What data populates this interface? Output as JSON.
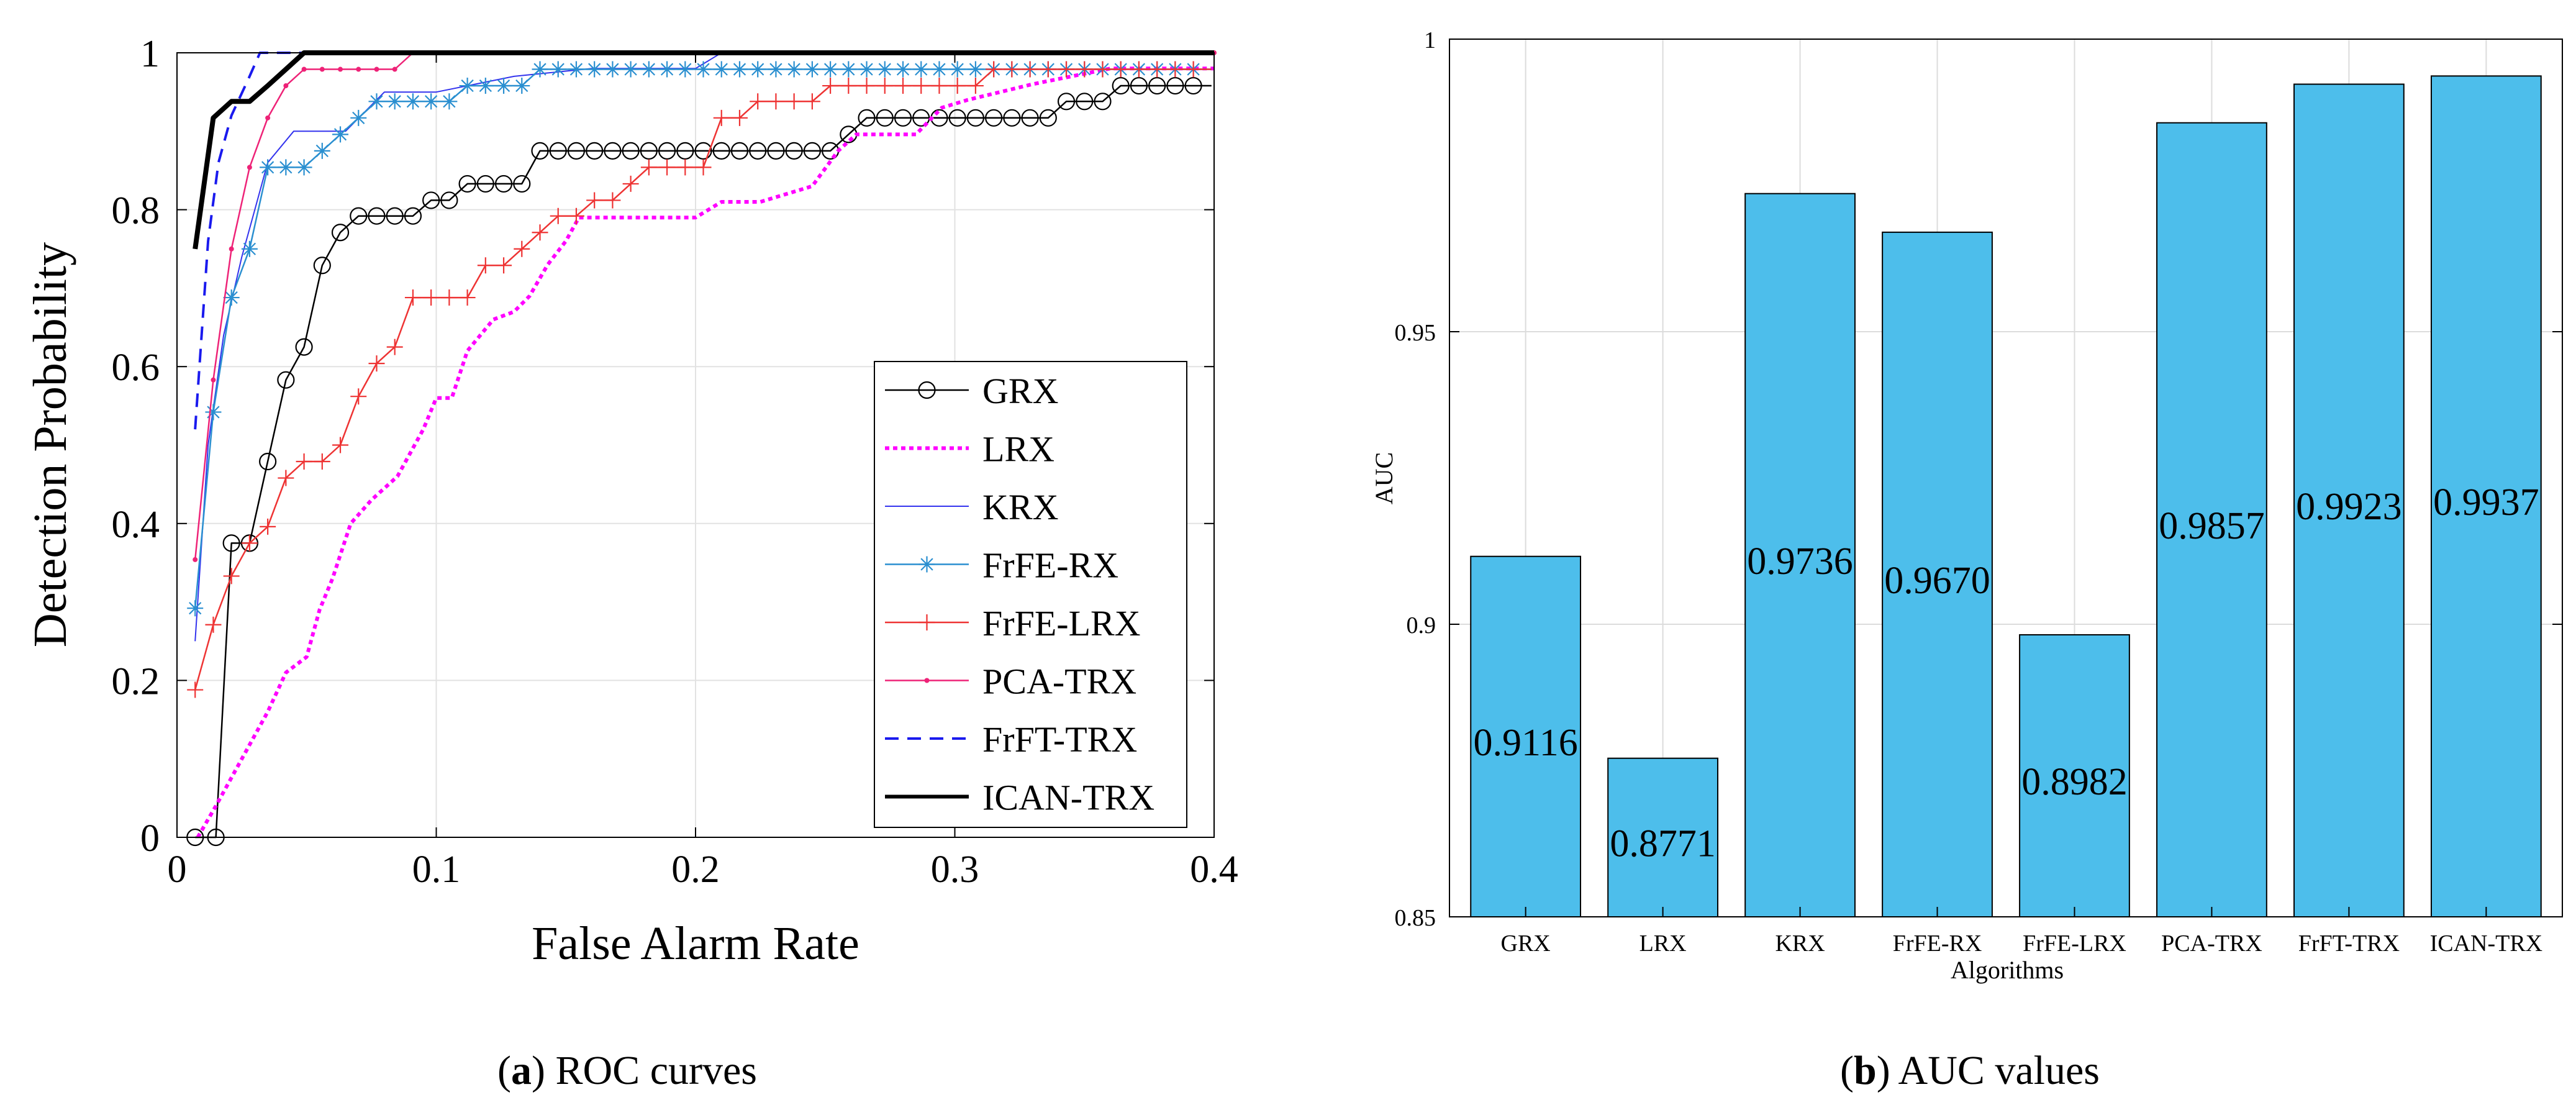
{
  "chart_data": [
    {
      "type": "line",
      "caption_prefix": "a",
      "caption_text": "ROC curves",
      "xlabel": "False Alarm Rate",
      "ylabel": "Detection Probability",
      "xlim": [
        0,
        0.4
      ],
      "ylim": [
        0,
        1
      ],
      "xticks": [
        "0",
        "0.1",
        "0.2",
        "0.3",
        "0.4"
      ],
      "yticks": [
        "0",
        "0.2",
        "0.4",
        "0.6",
        "0.8",
        "1"
      ],
      "grid": true,
      "legend_position": "bottom-right",
      "series": [
        {
          "name": "GRX",
          "color": "#000000",
          "style": "solid",
          "marker": "circle",
          "width": 2.5,
          "x": [
            0.007,
            0.015,
            0.021,
            0.028,
            0.035,
            0.042,
            0.049,
            0.056,
            0.063,
            0.07,
            0.077,
            0.084,
            0.091,
            0.098,
            0.105,
            0.112,
            0.119,
            0.126,
            0.133,
            0.14,
            0.147,
            0.154,
            0.161,
            0.168,
            0.175,
            0.182,
            0.189,
            0.196,
            0.203,
            0.21,
            0.217,
            0.224,
            0.231,
            0.238,
            0.245,
            0.252,
            0.259,
            0.266,
            0.273,
            0.28,
            0.287,
            0.294,
            0.301,
            0.308,
            0.315,
            0.322,
            0.329,
            0.336,
            0.343,
            0.35,
            0.357,
            0.364,
            0.371,
            0.378,
            0.385,
            0.392,
            0.399
          ],
          "y": [
            0,
            0,
            0.375,
            0.375,
            0.479,
            0.583,
            0.625,
            0.729,
            0.771,
            0.792,
            0.792,
            0.792,
            0.792,
            0.812,
            0.812,
            0.833,
            0.833,
            0.833,
            0.833,
            0.875,
            0.875,
            0.875,
            0.875,
            0.875,
            0.875,
            0.875,
            0.875,
            0.875,
            0.875,
            0.875,
            0.875,
            0.875,
            0.875,
            0.875,
            0.875,
            0.875,
            0.896,
            0.917,
            0.917,
            0.917,
            0.917,
            0.917,
            0.917,
            0.917,
            0.917,
            0.917,
            0.917,
            0.917,
            0.938,
            0.938,
            0.938,
            0.958,
            0.958,
            0.958,
            0.958,
            0.958,
            0.958
          ]
        },
        {
          "name": "LRX",
          "color": "#ff00ff",
          "style": "dotted",
          "marker": "none",
          "width": 6,
          "x": [
            0.008,
            0.015,
            0.025,
            0.035,
            0.042,
            0.05,
            0.055,
            0.06,
            0.067,
            0.075,
            0.085,
            0.095,
            0.1,
            0.106,
            0.112,
            0.122,
            0.13,
            0.136,
            0.143,
            0.15,
            0.155,
            0.17,
            0.2,
            0.21,
            0.225,
            0.245,
            0.255,
            0.262,
            0.285,
            0.295,
            0.305,
            0.33,
            0.36,
            0.4
          ],
          "y": [
            0,
            0.04,
            0.1,
            0.16,
            0.21,
            0.23,
            0.29,
            0.33,
            0.4,
            0.43,
            0.46,
            0.52,
            0.56,
            0.56,
            0.62,
            0.66,
            0.67,
            0.69,
            0.73,
            0.76,
            0.79,
            0.79,
            0.79,
            0.81,
            0.81,
            0.83,
            0.875,
            0.896,
            0.896,
            0.93,
            0.94,
            0.96,
            0.98,
            0.98
          ]
        },
        {
          "name": "KRX",
          "color": "#3333ee",
          "style": "solid",
          "marker": "none",
          "width": 2,
          "x": [
            0.007,
            0.012,
            0.018,
            0.025,
            0.03,
            0.035,
            0.045,
            0.05,
            0.065,
            0.08,
            0.1,
            0.13,
            0.16,
            0.2,
            0.21,
            0.3,
            0.4
          ],
          "y": [
            0.25,
            0.5,
            0.64,
            0.74,
            0.8,
            0.86,
            0.9,
            0.9,
            0.9,
            0.95,
            0.95,
            0.97,
            0.98,
            0.98,
            1,
            1,
            1
          ]
        },
        {
          "name": "FrFE-RX",
          "color": "#2a8fd0",
          "style": "solid",
          "marker": "star",
          "width": 2.5,
          "x": [
            0.007,
            0.014,
            0.021,
            0.028,
            0.035,
            0.042,
            0.049,
            0.056,
            0.063,
            0.07,
            0.077,
            0.084,
            0.091,
            0.098,
            0.105,
            0.112,
            0.119,
            0.126,
            0.133,
            0.14,
            0.147,
            0.154,
            0.161,
            0.168,
            0.175,
            0.182,
            0.189,
            0.196,
            0.203,
            0.21,
            0.217,
            0.224,
            0.231,
            0.238,
            0.245,
            0.252,
            0.259,
            0.266,
            0.273,
            0.28,
            0.287,
            0.294,
            0.301,
            0.308,
            0.315,
            0.322,
            0.329,
            0.336,
            0.343,
            0.35,
            0.357,
            0.364,
            0.371,
            0.378,
            0.385,
            0.392,
            0.399
          ],
          "y": [
            0.292,
            0.542,
            0.688,
            0.75,
            0.854,
            0.854,
            0.854,
            0.875,
            0.896,
            0.917,
            0.938,
            0.938,
            0.938,
            0.938,
            0.938,
            0.958,
            0.958,
            0.958,
            0.958,
            0.979,
            0.979,
            0.979,
            0.979,
            0.979,
            0.979,
            0.979,
            0.979,
            0.979,
            0.979,
            0.979,
            0.979,
            0.979,
            0.979,
            0.979,
            0.979,
            0.979,
            0.979,
            0.979,
            0.979,
            0.979,
            0.979,
            0.979,
            0.979,
            0.979,
            0.979,
            0.979,
            0.979,
            0.979,
            0.979,
            0.979,
            0.979,
            0.979,
            0.979,
            0.979,
            0.979,
            0.979,
            0.979
          ]
        },
        {
          "name": "FrFE-LRX",
          "color": "#ee3333",
          "style": "solid",
          "marker": "plus",
          "width": 2.5,
          "x": [
            0.007,
            0.014,
            0.021,
            0.028,
            0.035,
            0.042,
            0.049,
            0.056,
            0.063,
            0.07,
            0.077,
            0.084,
            0.091,
            0.098,
            0.105,
            0.112,
            0.119,
            0.126,
            0.133,
            0.14,
            0.147,
            0.154,
            0.161,
            0.168,
            0.175,
            0.182,
            0.189,
            0.196,
            0.203,
            0.21,
            0.217,
            0.224,
            0.231,
            0.238,
            0.245,
            0.252,
            0.259,
            0.266,
            0.273,
            0.28,
            0.287,
            0.294,
            0.301,
            0.308,
            0.315,
            0.322,
            0.329,
            0.336,
            0.343,
            0.35,
            0.357,
            0.364,
            0.371,
            0.378,
            0.385,
            0.392,
            0.399
          ],
          "y": [
            0.188,
            0.271,
            0.333,
            0.375,
            0.396,
            0.458,
            0.479,
            0.479,
            0.5,
            0.562,
            0.604,
            0.625,
            0.688,
            0.688,
            0.688,
            0.688,
            0.729,
            0.729,
            0.75,
            0.771,
            0.792,
            0.792,
            0.812,
            0.812,
            0.833,
            0.854,
            0.854,
            0.854,
            0.854,
            0.917,
            0.917,
            0.938,
            0.938,
            0.938,
            0.938,
            0.958,
            0.958,
            0.958,
            0.958,
            0.958,
            0.958,
            0.958,
            0.958,
            0.958,
            0.979,
            0.979,
            0.979,
            0.979,
            0.979,
            0.979,
            0.979,
            0.979,
            0.979,
            0.979,
            0.979,
            0.979,
            0.979
          ]
        },
        {
          "name": "PCA-TRX",
          "color": "#ee2277",
          "style": "solid",
          "marker": "dot",
          "width": 2.5,
          "x": [
            0.007,
            0.014,
            0.021,
            0.028,
            0.035,
            0.042,
            0.049,
            0.056,
            0.063,
            0.07,
            0.077,
            0.084,
            0.091,
            0.1,
            0.15,
            0.2,
            0.3,
            0.4
          ],
          "y": [
            0.354,
            0.583,
            0.75,
            0.854,
            0.917,
            0.958,
            0.979,
            0.979,
            0.979,
            0.979,
            0.979,
            0.979,
            1,
            1,
            1,
            1,
            1,
            1
          ]
        },
        {
          "name": "FrFT-TRX",
          "color": "#1a1aee",
          "style": "dashed",
          "marker": "none",
          "width": 4,
          "x": [
            0.007,
            0.012,
            0.016,
            0.021,
            0.028,
            0.032,
            0.045,
            0.1,
            0.2,
            0.3,
            0.4
          ],
          "y": [
            0.52,
            0.76,
            0.86,
            0.92,
            0.97,
            1,
            1,
            1,
            1,
            1,
            1
          ]
        },
        {
          "name": "ICAN-TRX",
          "color": "#000000",
          "style": "solid",
          "marker": "none",
          "width": 8,
          "x": [
            0.007,
            0.014,
            0.021,
            0.028,
            0.035,
            0.042,
            0.049,
            0.056,
            0.1,
            0.2,
            0.3,
            0.4
          ],
          "y": [
            0.75,
            0.917,
            0.938,
            0.938,
            0.958,
            0.979,
            1,
            1,
            1,
            1,
            1,
            1
          ]
        }
      ]
    },
    {
      "type": "bar",
      "caption_prefix": "b",
      "caption_text": "AUC values",
      "xlabel": "Algorithms",
      "ylabel": "AUC",
      "ylim": [
        0.85,
        1
      ],
      "yticks": [
        "0.85",
        "0.9",
        "0.95",
        "1"
      ],
      "grid": true,
      "bar_color": "#4dbeeb",
      "categories": [
        "GRX",
        "LRX",
        "KRX",
        "FrFE-RX",
        "FrFE-LRX",
        "PCA-TRX",
        "FrFT-TRX",
        "ICAN-TRX"
      ],
      "values": [
        0.9116,
        0.8771,
        0.9736,
        0.967,
        0.8982,
        0.9857,
        0.9923,
        0.9937
      ],
      "value_labels": [
        "0.9116",
        "0.8771",
        "0.9736",
        "0.9670",
        "0.8982",
        "0.9857",
        "0.9923",
        "0.9937"
      ]
    }
  ]
}
